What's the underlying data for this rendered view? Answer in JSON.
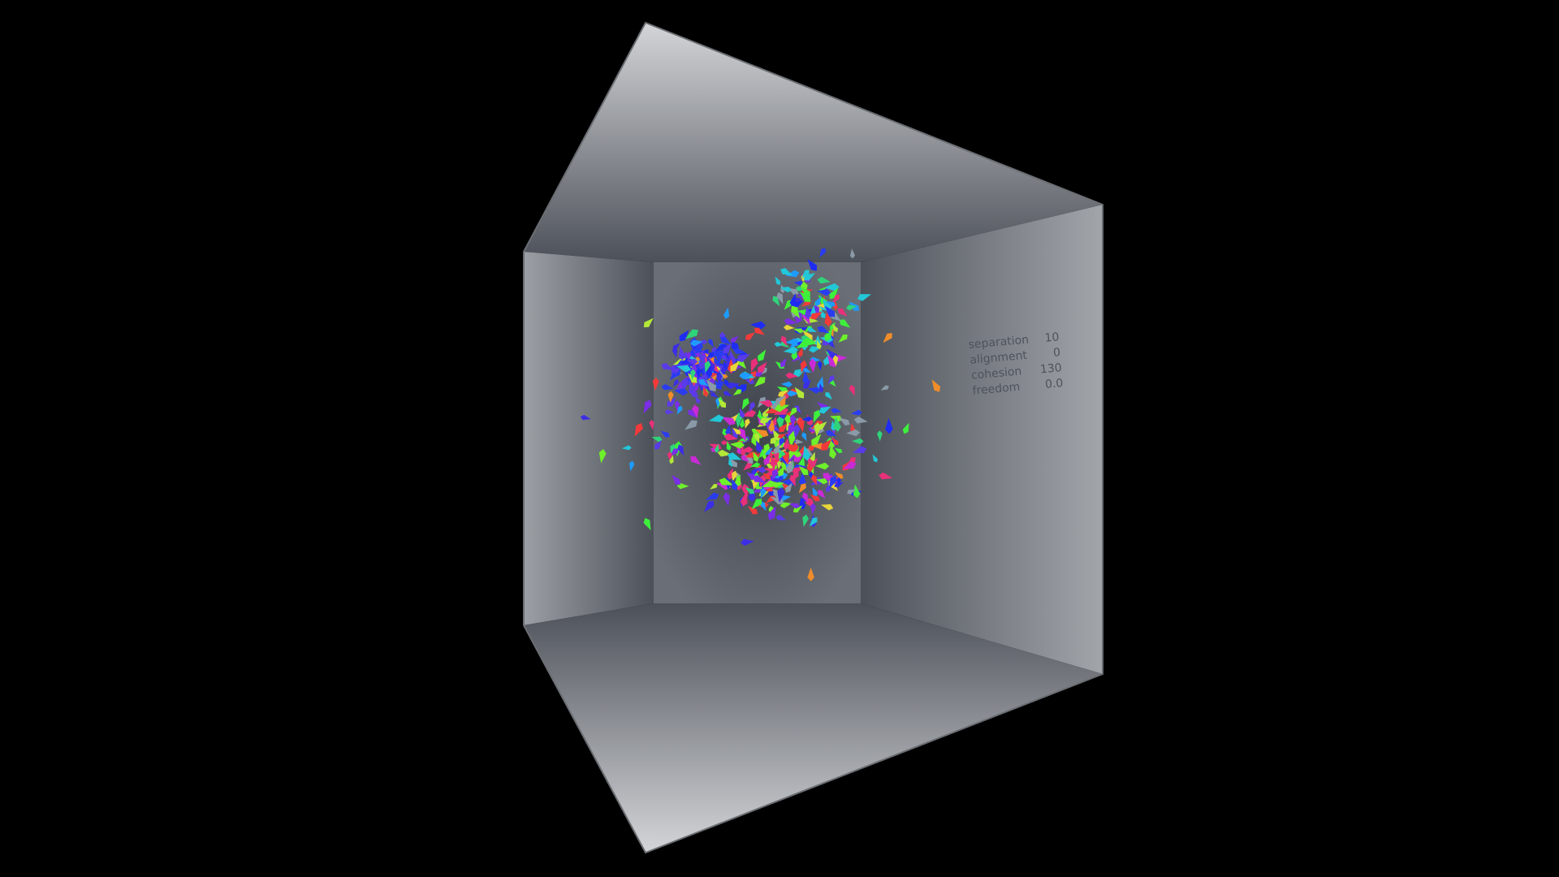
{
  "colors": {
    "background": "#000000",
    "wall_light": "#d0d2d5",
    "wall_dark": "#4c5058",
    "back_wall": "#5e636b",
    "edge": "#6a6e73",
    "hud_text": "#4d535c"
  },
  "boid_palette": [
    "#1f2cf2",
    "#2a3cf0",
    "#3b2ee6",
    "#5a3be8",
    "#7a2ee6",
    "#1e9bff",
    "#22c7d8",
    "#2fd47a",
    "#3ef03c",
    "#6ef02a",
    "#b3e838",
    "#e8d43a",
    "#f08c2a",
    "#f23a3a",
    "#e8307a",
    "#c92ad6",
    "#8a9aa8"
  ],
  "hud": {
    "rows": [
      {
        "label": "separation",
        "value": "10"
      },
      {
        "label": "alignment",
        "value": "0"
      },
      {
        "label": "cohesion",
        "value": "130"
      },
      {
        "label": "freedom",
        "value": "0.0"
      }
    ]
  }
}
